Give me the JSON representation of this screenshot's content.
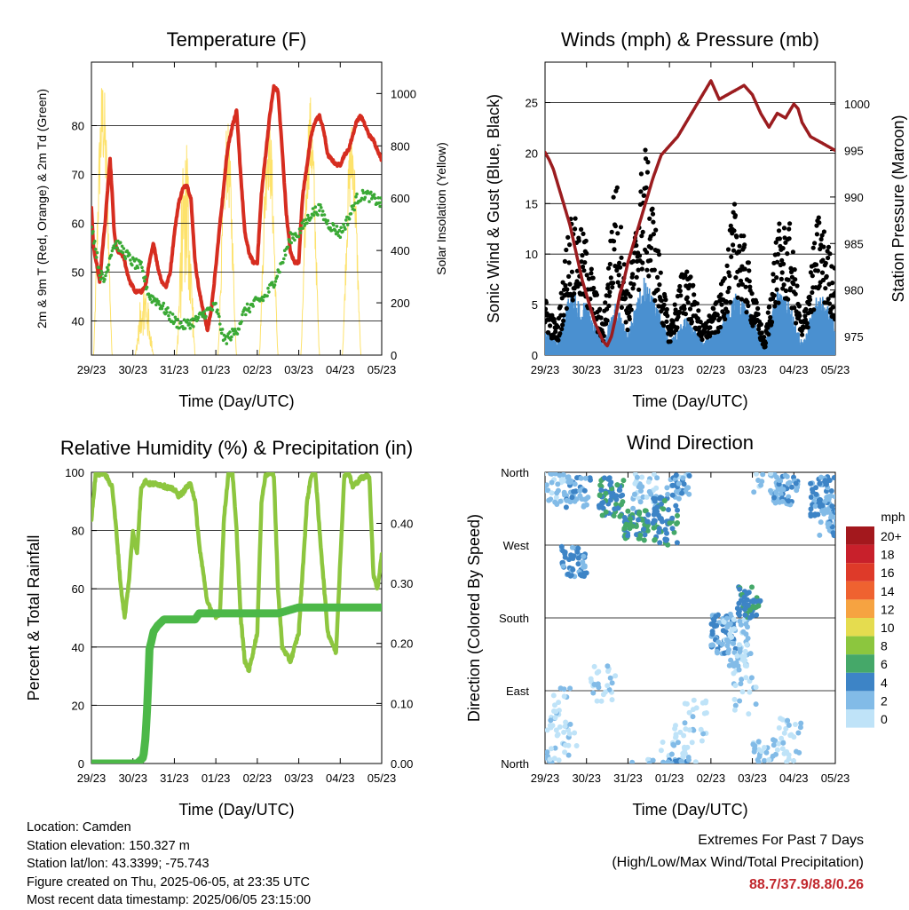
{
  "chart_data": [
    {
      "type": "line",
      "title": "Temperature (F)",
      "xlabel": "Time (Day/UTC)",
      "ylabel": "2m & 9m T (Red, Orange) & 2m Td (Green)",
      "y2label": "Solar Insolation (Yellow)",
      "x_ticks": [
        "29/23",
        "30/23",
        "31/23",
        "01/23",
        "02/23",
        "03/23",
        "04/23",
        "05/23"
      ],
      "ylim": [
        33,
        93
      ],
      "y_ticks": [
        40,
        50,
        60,
        70,
        80
      ],
      "y2lim": [
        0,
        1120
      ],
      "y2_ticks": [
        0,
        200,
        400,
        600,
        800,
        1000
      ],
      "series": [
        {
          "role": "temperature_2m",
          "color": "#d62d20",
          "x": [
            0,
            0.05,
            0.12,
            0.2,
            0.27,
            0.33,
            0.4,
            0.45,
            0.5,
            0.55,
            0.6,
            0.65,
            0.7,
            0.78,
            0.86,
            0.93,
            1.0,
            1.05,
            1.1,
            1.2,
            1.3,
            1.4,
            1.5,
            1.6,
            1.7,
            1.8,
            1.9,
            2.0,
            2.1,
            2.2,
            2.3,
            2.4,
            2.5,
            2.6,
            2.7,
            2.8,
            2.9,
            3.0,
            3.1,
            3.2,
            3.25,
            3.3,
            3.4,
            3.5,
            3.6,
            3.7,
            3.8,
            3.9,
            4.0,
            4.05,
            4.1,
            4.2,
            4.3,
            4.4,
            4.5,
            4.6,
            4.7,
            4.8,
            4.9,
            5.0,
            5.05,
            5.1,
            5.2,
            5.3,
            5.4,
            5.5,
            5.6,
            5.7,
            5.8,
            5.9,
            6.0,
            6.05,
            6.1,
            6.2,
            6.3,
            6.4,
            6.5,
            6.6,
            6.7,
            6.8,
            6.9,
            7.0
          ],
          "y": [
            63,
            55,
            52,
            48,
            55,
            60,
            68,
            73,
            66,
            58,
            55,
            54,
            54,
            53,
            50,
            48,
            47,
            46,
            46,
            46,
            47,
            52,
            56,
            51,
            48,
            47,
            50,
            58,
            64,
            67,
            68,
            65,
            52,
            46,
            42,
            38,
            43,
            51,
            60,
            68,
            73,
            76,
            80,
            83,
            70,
            58,
            54,
            52,
            52,
            59,
            66,
            74,
            82,
            88,
            87,
            75,
            62,
            54,
            52,
            52,
            60,
            66,
            72,
            78,
            81,
            82,
            79,
            74,
            73,
            72,
            72,
            73,
            74,
            75,
            78,
            81,
            82,
            80,
            78,
            77,
            75,
            73
          ],
          "y_display_note": "red line"
        },
        {
          "role": "dewpoint_2m",
          "color": "#3aa935"
        }
      ]
    },
    {
      "type": "line",
      "title": "Winds (mph) & Pressure (mb)",
      "xlabel": "Time (Day/UTC)",
      "ylabel": "Sonic Wind & Gust (Blue, Black)",
      "y2label": "Station Pressure (Maroon)",
      "x_ticks": [
        "29/23",
        "30/23",
        "31/23",
        "01/23",
        "02/23",
        "03/23",
        "04/23",
        "05/23"
      ],
      "ylim": [
        0,
        29
      ],
      "y_ticks": [
        0,
        5,
        10,
        15,
        20,
        25
      ],
      "y2lim": [
        973,
        1004.5
      ],
      "y2_ticks": [
        975,
        980,
        985,
        990,
        995,
        1000
      ],
      "pressure": {
        "color": "#9b1c1f",
        "x": [
          0,
          0.1,
          0.2,
          0.3,
          0.4,
          0.5,
          0.6,
          0.7,
          0.8,
          0.9,
          1.0,
          1.1,
          1.2,
          1.3,
          1.4,
          1.5,
          1.6,
          1.7,
          1.8,
          1.9,
          2.0,
          2.2,
          2.4,
          2.6,
          2.8,
          3.0,
          3.2,
          3.4,
          3.6,
          3.8,
          4.0,
          4.2,
          4.4,
          4.6,
          4.8,
          5.0,
          5.2,
          5.4,
          5.6,
          5.8,
          6.0,
          6.1,
          6.2,
          6.4,
          6.6,
          6.8,
          7.0
        ],
        "y": [
          994.8,
          994,
          993,
          991.5,
          990,
          988.5,
          987,
          985,
          983,
          981,
          979.5,
          978,
          976.5,
          975.5,
          974.5,
          974,
          975,
          977,
          979.5,
          981,
          983,
          986,
          989,
          992,
          994.5,
          995.5,
          996.5,
          998,
          999.5,
          1001,
          1002.5,
          1000.5,
          1001,
          1001.5,
          1002,
          1001,
          999,
          997.5,
          999,
          998.5,
          1000,
          999.5,
          998,
          996.5,
          996,
          995.5,
          995
        ]
      },
      "wind_envelope": {
        "color": "#4a90d0",
        "x": [
          0,
          0.3,
          0.6,
          1.0,
          1.4,
          1.7,
          2.0,
          2.4,
          2.8,
          3.0,
          3.4,
          3.8,
          4.2,
          4.6,
          5.0,
          5.3,
          5.6,
          5.9,
          6.2,
          6.6,
          7.0
        ],
        "y": [
          2,
          1,
          5,
          4,
          1,
          4,
          2,
          6,
          3,
          1,
          3,
          1,
          2,
          5,
          3,
          1,
          5,
          4,
          1,
          5,
          3
        ]
      }
    },
    {
      "type": "line",
      "title": "Relative Humidity (%) & Precipitation (in)",
      "xlabel": "Time (Day/UTC)",
      "ylabel": "Percent & Total Rainfall",
      "x_ticks": [
        "29/23",
        "30/23",
        "31/23",
        "01/23",
        "02/23",
        "03/23",
        "04/23",
        "05/23"
      ],
      "ylim": [
        0,
        100
      ],
      "y_ticks": [
        0,
        20,
        40,
        60,
        80,
        100
      ],
      "y2lim": [
        0,
        0.485
      ],
      "y2_ticks": [
        "0.00",
        "0.10",
        "0.20",
        "0.30",
        "0.40"
      ],
      "series": [
        {
          "name": "relative_humidity",
          "color": "#8dc63f",
          "x": [
            0,
            0.1,
            0.3,
            0.5,
            0.6,
            0.7,
            0.8,
            0.9,
            1.0,
            1.1,
            1.2,
            1.3,
            1.4,
            1.6,
            1.8,
            2.0,
            2.1,
            2.2,
            2.3,
            2.4,
            2.5,
            2.6,
            2.8,
            3.0,
            3.1,
            3.2,
            3.3,
            3.4,
            3.5,
            3.6,
            3.7,
            3.8,
            4.0,
            4.1,
            4.2,
            4.3,
            4.4,
            4.5,
            4.6,
            4.8,
            5.0,
            5.2,
            5.3,
            5.4,
            5.5,
            5.7,
            5.9,
            6.0,
            6.1,
            6.2,
            6.3,
            6.5,
            6.7,
            6.8,
            6.9,
            7.0
          ],
          "y": [
            84,
            99,
            100,
            95,
            80,
            62,
            50,
            62,
            80,
            72,
            95,
            97,
            96,
            96,
            95,
            94,
            92,
            93,
            95,
            96,
            90,
            75,
            55,
            50,
            52,
            85,
            99,
            100,
            80,
            50,
            35,
            32,
            45,
            90,
            99,
            100,
            99,
            60,
            40,
            35,
            45,
            90,
            99,
            100,
            80,
            45,
            38,
            70,
            99,
            100,
            95,
            98,
            99,
            65,
            60,
            72
          ]
        },
        {
          "name": "total_precipitation",
          "color": "#4cb848",
          "x": [
            0,
            0.9,
            1.1,
            1.25,
            1.3,
            1.35,
            1.4,
            1.5,
            1.6,
            1.75,
            2.0,
            2.5,
            2.6,
            3.0,
            3.5,
            4.0,
            4.5,
            5.0,
            5.5,
            6.0,
            7.0
          ],
          "y": [
            0,
            0,
            0,
            0.01,
            0.04,
            0.1,
            0.19,
            0.22,
            0.23,
            0.24,
            0.24,
            0.24,
            0.25,
            0.25,
            0.25,
            0.25,
            0.25,
            0.26,
            0.26,
            0.26,
            0.26
          ]
        }
      ]
    },
    {
      "type": "scatter",
      "title": "Wind Direction",
      "xlabel": "Time (Day/UTC)",
      "ylabel": "Direction (Colored By Speed)",
      "x_ticks": [
        "29/23",
        "30/23",
        "31/23",
        "01/23",
        "02/23",
        "03/23",
        "04/23",
        "05/23"
      ],
      "y_ticks": [
        "North",
        "East",
        "South",
        "West",
        "North"
      ],
      "legend": {
        "title": "mph",
        "position": "right",
        "labels": [
          "20+",
          "18",
          "16",
          "14",
          "12",
          "10",
          "8",
          "6",
          "4",
          "2",
          "0"
        ],
        "colors": [
          "#a3181d",
          "#c8202b",
          "#de3a29",
          "#ef6230",
          "#f6a341",
          "#e5dc4f",
          "#8cc63e",
          "#45a869",
          "#3d84c6",
          "#82bbe7",
          "#bfe3f8"
        ]
      }
    }
  ],
  "info": {
    "location": "Location: Camden",
    "elevation": "Station elevation: 150.327 m",
    "latlon": "Station lat/lon: 43.3399; -75.743",
    "created": "Figure created on Thu, 2025-06-05, at 23:35 UTC",
    "recent": "Most recent data timestamp: 2025/06/05 23:15:00"
  },
  "extremes": {
    "title": "Extremes For Past 7 Days",
    "subtitle": "(High/Low/Max Wind/Total Precipitation)",
    "values": "88.7/37.9/8.8/0.26"
  }
}
